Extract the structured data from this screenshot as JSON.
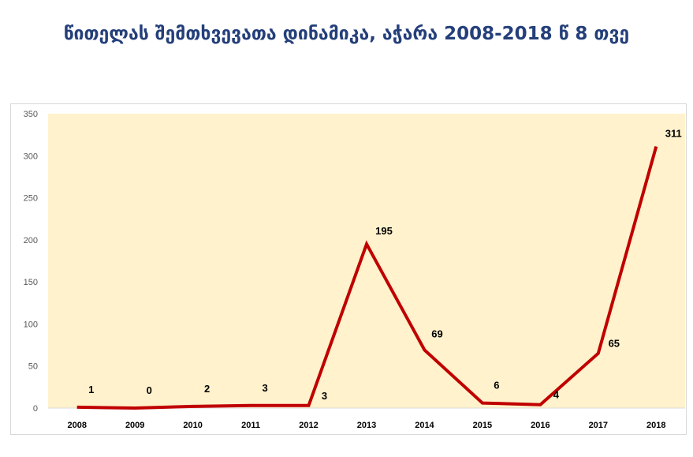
{
  "title": "წითელას შემთხვევათა დინამიკა,  აჭარა 2008-2018 წ 8 თვე",
  "colors": {
    "line": "#c00000",
    "plot_bg": "#fff2cc",
    "title": "#243f7a"
  },
  "chart_data": {
    "type": "line",
    "title": "წითელას შემთხვევათა დინამიკა,  აჭარა 2008-2018 წ 8 თვე",
    "categories": [
      "2008",
      "2009",
      "2010",
      "2011",
      "2012",
      "2013",
      "2014",
      "2015",
      "2016",
      "2017",
      "2018"
    ],
    "values": [
      1,
      0,
      2,
      3,
      3,
      195,
      69,
      6,
      4,
      65,
      311
    ],
    "xlabel": "",
    "ylabel": "",
    "ylim": [
      0,
      350
    ],
    "yticks": [
      "0",
      "50",
      "100",
      "150",
      "200",
      "250",
      "300",
      "350"
    ],
    "grid": false,
    "legend": "none",
    "data_labels": true
  }
}
